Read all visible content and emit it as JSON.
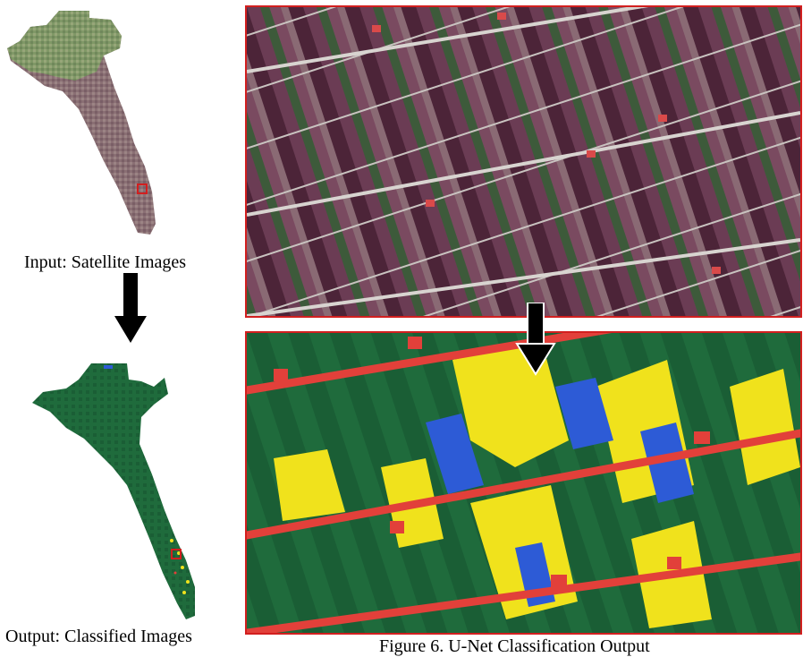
{
  "figure": {
    "caption": "Figure 6. U-Net Classification Output",
    "input_label": "Input: Satellite Images",
    "output_label": "Output: Classified Images"
  },
  "colors": {
    "frame": "#d21f1f",
    "class_vegetation": "#1f6b3c",
    "class_crop_yellow": "#f0e21c",
    "class_water_blue": "#2d5bd6",
    "class_builtup_red": "#e2403a",
    "arrow": "#000000"
  }
}
